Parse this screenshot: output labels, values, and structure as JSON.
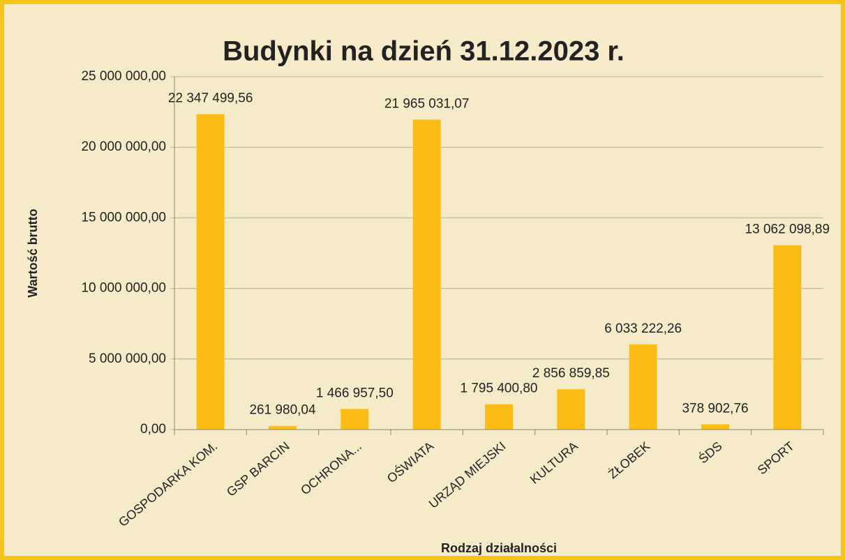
{
  "chart_data": {
    "type": "bar",
    "title": "Budynki na dzień 31.12.2023 r.",
    "x_label": "Rodzaj działalności",
    "y_label": "Wartość brutto",
    "categories": [
      "GOSPODARKA KOM.",
      "GSP BARCIN",
      "OCHRONA...",
      "OŚWIATA",
      "URZĄD MIEJSKI",
      "KULTURA",
      "ŻŁOBEK",
      "ŚDS",
      "SPORT"
    ],
    "values": [
      22347499.56,
      261980.04,
      1466957.5,
      21965031.07,
      1795400.8,
      2856859.85,
      6033222.26,
      378902.76,
      13062098.89
    ],
    "value_labels": [
      "22 347 499,56",
      "261 980,04",
      "1 466 957,50",
      "21 965 031,07",
      "1 795 400,80",
      "2 856 859,85",
      "6 033 222,26",
      "378 902,76",
      "13 062 098,89"
    ],
    "color": "#fbbd14",
    "ylim": [
      0,
      25000000
    ],
    "yticks": [
      {
        "value": 0,
        "label": "0,00"
      },
      {
        "value": 5000000,
        "label": "5 000 000,00"
      },
      {
        "value": 10000000,
        "label": "10 000 000,00"
      },
      {
        "value": 15000000,
        "label": "15 000 000,00"
      },
      {
        "value": 20000000,
        "label": "20 000 000,00"
      },
      {
        "value": 25000000,
        "label": "25 000 000,00"
      }
    ],
    "grid": true
  }
}
